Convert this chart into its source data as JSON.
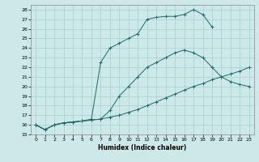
{
  "xlabel": "Humidex (Indice chaleur)",
  "background_color": "#cce8e8",
  "grid_color": "#aacece",
  "line_color": "#1a6b6b",
  "xlim": [
    -0.5,
    23.5
  ],
  "ylim": [
    15,
    28.5
  ],
  "xticks": [
    0,
    1,
    2,
    3,
    4,
    5,
    6,
    7,
    8,
    9,
    10,
    11,
    12,
    13,
    14,
    15,
    16,
    17,
    18,
    19,
    20,
    21,
    22,
    23
  ],
  "yticks": [
    15,
    16,
    17,
    18,
    19,
    20,
    21,
    22,
    23,
    24,
    25,
    26,
    27,
    28
  ],
  "series1_x": [
    0,
    1,
    2,
    3,
    4,
    5,
    6,
    7,
    8,
    9,
    10,
    11,
    12,
    13,
    14,
    15,
    16,
    17,
    18,
    19,
    20,
    21,
    22,
    23
  ],
  "series1_y": [
    16,
    15.5,
    16.0,
    16.2,
    16.3,
    16.4,
    16.5,
    16.6,
    16.8,
    17.0,
    17.3,
    17.6,
    18.0,
    18.4,
    18.8,
    19.2,
    19.6,
    20.0,
    20.3,
    20.7,
    21.0,
    21.3,
    21.6,
    22.0
  ],
  "series2_x": [
    0,
    1,
    2,
    3,
    4,
    5,
    6,
    7,
    8,
    9,
    10,
    11,
    12,
    13,
    14,
    15,
    16,
    17,
    18,
    19,
    20,
    21,
    22,
    23
  ],
  "series2_y": [
    16,
    15.5,
    16.0,
    16.2,
    16.3,
    16.4,
    16.5,
    16.6,
    17.5,
    19.0,
    20.0,
    21.0,
    22.0,
    22.5,
    23.0,
    23.5,
    23.8,
    23.5,
    23.0,
    22.0,
    21.0,
    20.5,
    20.2,
    20.0
  ],
  "series3_x": [
    0,
    1,
    2,
    3,
    4,
    5,
    6,
    7,
    8,
    9,
    10,
    11,
    12,
    13,
    14,
    15,
    16,
    17,
    18,
    19
  ],
  "series3_y": [
    16,
    15.5,
    16.0,
    16.2,
    16.3,
    16.4,
    16.6,
    22.5,
    24.0,
    24.5,
    25.0,
    25.5,
    27.0,
    27.2,
    27.3,
    27.3,
    27.5,
    28.0,
    27.5,
    26.2
  ]
}
